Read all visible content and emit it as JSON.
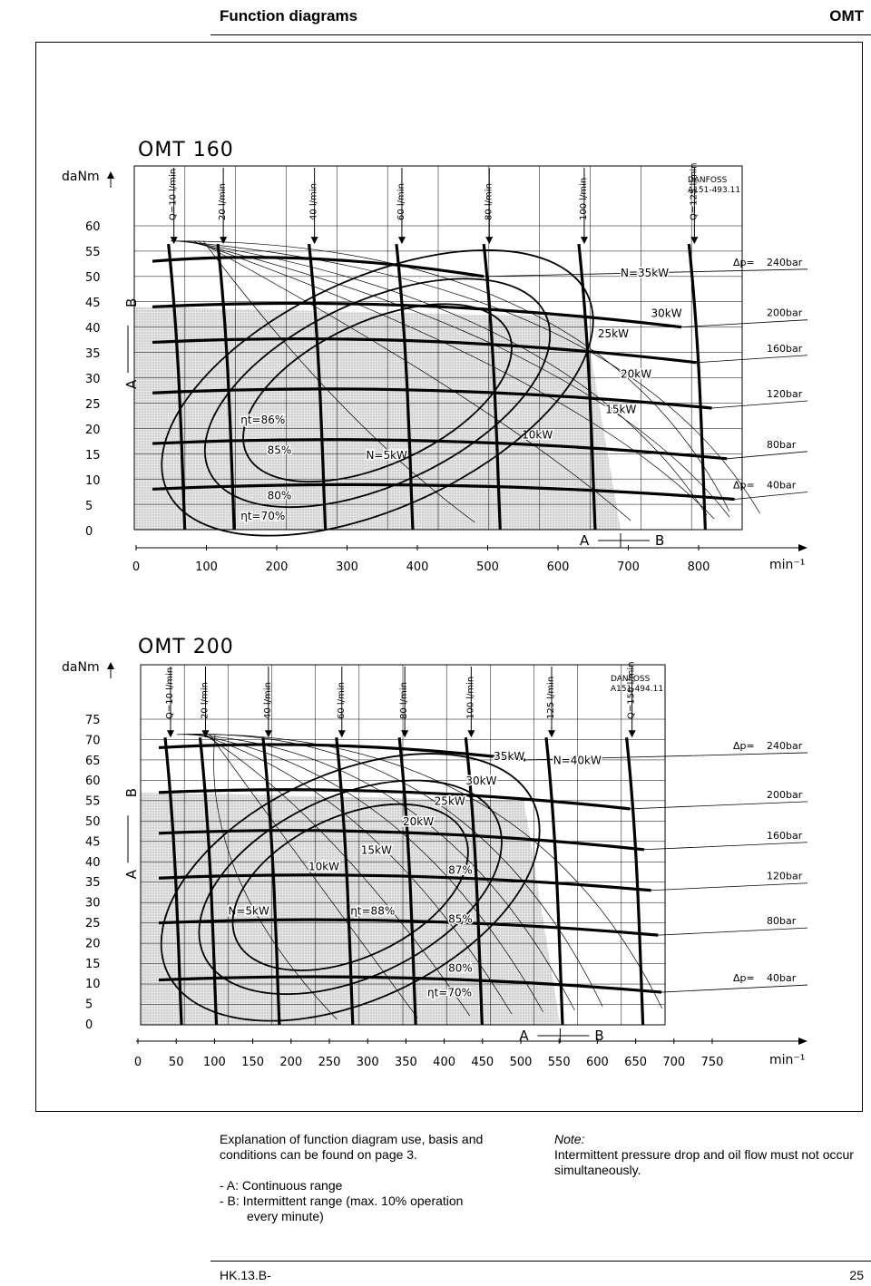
{
  "header": {
    "title": "Function diagrams",
    "product": "OMT"
  },
  "colors": {
    "range_a_fill": "#e6e6e6",
    "ink": "#000000"
  },
  "chart_data": [
    {
      "type": "line",
      "title": "OMT 160",
      "source_code": "DANFOSS\nA151-493.11",
      "ylabel": "daNm",
      "xlabel": "min⁻¹",
      "ylim": [
        0,
        60
      ],
      "xlim": [
        0,
        800
      ],
      "y_ticks": [
        "60",
        "55",
        "50",
        "45",
        "40",
        "35",
        "30",
        "25",
        "20",
        "15",
        "10",
        "5",
        "0"
      ],
      "x_ticks": [
        "0",
        "100",
        "200",
        "300",
        "400",
        "500",
        "600",
        "700",
        "800"
      ],
      "range_labels": {
        "a": "A",
        "b": "B"
      },
      "flow_lines": [
        {
          "label": "Q=10 l/min",
          "speed": 45
        },
        {
          "label": "20 l/min",
          "speed": 110
        },
        {
          "label": "40 l/min",
          "speed": 230
        },
        {
          "label": "60 l/min",
          "speed": 345
        },
        {
          "label": "80 l/min",
          "speed": 460
        },
        {
          "label": "100 l/min",
          "speed": 585
        },
        {
          "label": "Q=125 l/min",
          "speed": 730
        }
      ],
      "pressure_lines": [
        {
          "label": "240bar",
          "prefix": "Δp=",
          "torque_start": 53,
          "torque_end": 50,
          "end_speed": 460
        },
        {
          "label": "200bar",
          "torque_start": 44,
          "torque_end": 40,
          "end_speed": 720
        },
        {
          "label": "160bar",
          "torque_start": 37,
          "torque_end": 33,
          "end_speed": 740
        },
        {
          "label": "120bar",
          "torque_start": 27,
          "torque_end": 24,
          "end_speed": 760
        },
        {
          "label": "80bar",
          "torque_start": 17,
          "torque_end": 14,
          "end_speed": 780
        },
        {
          "label": "40bar",
          "prefix": "Δp=",
          "torque_start": 8,
          "torque_end": 6,
          "end_speed": 790
        }
      ],
      "power_labels": [
        {
          "label": "N=35kW",
          "speed": 640,
          "torque": 50
        },
        {
          "label": "30kW",
          "speed": 680,
          "torque": 42
        },
        {
          "label": "25kW",
          "speed": 610,
          "torque": 38
        },
        {
          "label": "20kW",
          "speed": 640,
          "torque": 30
        },
        {
          "label": "15kW",
          "speed": 620,
          "torque": 23
        },
        {
          "label": "10kW",
          "speed": 510,
          "torque": 18
        },
        {
          "label": "N=5kW",
          "speed": 305,
          "torque": 14
        }
      ],
      "efficiency_labels": [
        {
          "label": "ηt=86%",
          "speed": 140,
          "torque": 21
        },
        {
          "label": "85%",
          "speed": 175,
          "torque": 15
        },
        {
          "label": "80%",
          "speed": 175,
          "torque": 6
        },
        {
          "label": "ηt=70%",
          "speed": 140,
          "torque": 2
        }
      ],
      "boundary_speed": 640
    },
    {
      "type": "line",
      "title": "OMT 200",
      "source_code": "DANFOSS\nA151-494.11",
      "ylabel": "daNm",
      "xlabel": "min⁻¹",
      "ylim": [
        0,
        75
      ],
      "xlim": [
        0,
        750
      ],
      "y_ticks": [
        "75",
        "70",
        "65",
        "60",
        "55",
        "50",
        "45",
        "40",
        "35",
        "30",
        "25",
        "20",
        "15",
        "10",
        "5",
        "0"
      ],
      "x_ticks": [
        "0",
        "50",
        "100",
        "150",
        "200",
        "250",
        "300",
        "350",
        "400",
        "450",
        "500",
        "550",
        "600",
        "650",
        "700",
        "750"
      ],
      "range_labels": {
        "a": "A",
        "b": "B"
      },
      "flow_lines": [
        {
          "label": "Q=10 l/min",
          "speed": 35
        },
        {
          "label": "20 l/min",
          "speed": 85
        },
        {
          "label": "40 l/min",
          "speed": 175
        },
        {
          "label": "60 l/min",
          "speed": 280
        },
        {
          "label": "80 l/min",
          "speed": 370
        },
        {
          "label": "100 l/min",
          "speed": 465
        },
        {
          "label": "125 l/min",
          "speed": 580
        },
        {
          "label": "Q=150 l/min",
          "speed": 695
        }
      ],
      "pressure_lines": [
        {
          "label": "240bar",
          "prefix": "Δp=",
          "torque_start": 68,
          "torque_end": 65,
          "end_speed": 550
        },
        {
          "label": "200bar",
          "torque_start": 57,
          "torque_end": 53,
          "end_speed": 700
        },
        {
          "label": "160bar",
          "torque_start": 47,
          "torque_end": 43,
          "end_speed": 720
        },
        {
          "label": "120bar",
          "torque_start": 36,
          "torque_end": 33,
          "end_speed": 730
        },
        {
          "label": "80bar",
          "torque_start": 25,
          "torque_end": 22,
          "end_speed": 740
        },
        {
          "label": "40bar",
          "prefix": "Δp=",
          "torque_start": 11,
          "torque_end": 8,
          "end_speed": 745
        }
      ],
      "power_labels": [
        {
          "label": "35kW",
          "speed": 505,
          "torque": 65
        },
        {
          "label": "N=40kW",
          "speed": 590,
          "torque": 64
        },
        {
          "label": "30kW",
          "speed": 465,
          "torque": 59
        },
        {
          "label": "25kW",
          "speed": 420,
          "torque": 54
        },
        {
          "label": "20kW",
          "speed": 375,
          "torque": 49
        },
        {
          "label": "15kW",
          "speed": 315,
          "torque": 42
        },
        {
          "label": "10kW",
          "speed": 240,
          "torque": 38
        },
        {
          "label": "N=5kW",
          "speed": 125,
          "torque": 27
        }
      ],
      "efficiency_labels": [
        {
          "label": "87%",
          "speed": 440,
          "torque": 37
        },
        {
          "label": "ηt=88%",
          "speed": 300,
          "torque": 27
        },
        {
          "label": "85%",
          "speed": 440,
          "torque": 25
        },
        {
          "label": "80%",
          "speed": 440,
          "torque": 13
        },
        {
          "label": "ηt=70%",
          "speed": 410,
          "torque": 7
        }
      ],
      "boundary_speed": 600
    }
  ],
  "notes": {
    "explanation": [
      "Explanation of function diagram use, basis and",
      "conditions can be found on page 3."
    ],
    "range_a": "- A:  Continuous range",
    "range_b": "- B:  Intermittent range (max. 10% operation",
    "range_b2": "every minute)",
    "note_title": "Note:",
    "note_text": "Intermittent pressure drop and oil flow must not occur simultaneously."
  },
  "footer": {
    "code": "HK.13.B-",
    "page": "25"
  }
}
